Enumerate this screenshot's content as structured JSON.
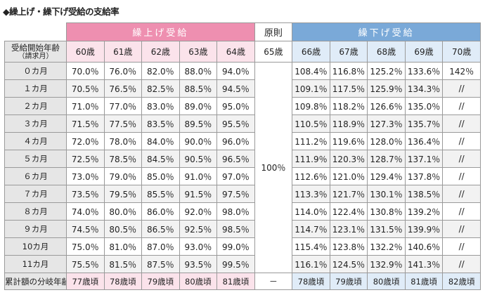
{
  "title": "◆繰上げ・繰下げ受給の支給率",
  "headers": {
    "early": "繰上げ受給",
    "base": "原則",
    "late": "繰下げ受給",
    "row_head_main": "受給開始年齢",
    "row_head_sub": "（請求月）"
  },
  "ages": [
    "60歳",
    "61歳",
    "62歳",
    "63歳",
    "64歳",
    "65歳",
    "66歳",
    "67歳",
    "68歳",
    "69歳",
    "70歳"
  ],
  "base_rate": "100％",
  "months": [
    "０カ月",
    "１カ月",
    "２カ月",
    "３カ月",
    "４カ月",
    "５カ月",
    "６カ月",
    "７カ月",
    "８カ月",
    "９カ月",
    "10カ月",
    "11カ月"
  ],
  "early_rates": [
    [
      "70.0％",
      "76.0％",
      "82.0％",
      "88.0％",
      "94.0％"
    ],
    [
      "70.5％",
      "76.5％",
      "82.5％",
      "88.5％",
      "94.5％"
    ],
    [
      "71.0％",
      "77.0％",
      "83.0％",
      "89.0％",
      "95.0％"
    ],
    [
      "71.5％",
      "77.5％",
      "83.5％",
      "89.5％",
      "95.5％"
    ],
    [
      "72.0％",
      "78.0％",
      "84.0％",
      "90.0％",
      "96.0％"
    ],
    [
      "72.5％",
      "78.5％",
      "84.5％",
      "90.5％",
      "96.5％"
    ],
    [
      "73.0％",
      "79.0％",
      "85.0％",
      "91.0％",
      "97.0％"
    ],
    [
      "73.5％",
      "79.5％",
      "85.5％",
      "91.5％",
      "97.5％"
    ],
    [
      "74.0％",
      "80.0％",
      "86.0％",
      "92.0％",
      "98.0％"
    ],
    [
      "74.5％",
      "80.5％",
      "86.5％",
      "92.5％",
      "98.5％"
    ],
    [
      "75.0％",
      "81.0％",
      "87.0％",
      "93.0％",
      "99.0％"
    ],
    [
      "75.5％",
      "81.5％",
      "87.5％",
      "93.5％",
      "99.5％"
    ]
  ],
  "late_rates": [
    [
      "108.4％",
      "116.8％",
      "125.2％",
      "133.6％",
      "142％"
    ],
    [
      "109.1％",
      "117.5％",
      "125.9％",
      "134.3％",
      "//"
    ],
    [
      "109.8％",
      "118.2％",
      "126.6％",
      "135.0％",
      "//"
    ],
    [
      "110.5％",
      "118.9％",
      "127.3％",
      "135.7％",
      "//"
    ],
    [
      "111.2％",
      "119.6％",
      "128.0％",
      "136.4％",
      "//"
    ],
    [
      "111.9％",
      "120.3％",
      "128.7％",
      "137.1％",
      "//"
    ],
    [
      "112.6％",
      "121.0％",
      "129.4％",
      "137.8％",
      "//"
    ],
    [
      "113.3％",
      "121.7％",
      "130.1％",
      "138.5％",
      "//"
    ],
    [
      "114.0％",
      "122.4％",
      "130.8％",
      "139.2％",
      "//"
    ],
    [
      "114.7％",
      "123.1％",
      "131.5％",
      "139.9％",
      "//"
    ],
    [
      "115.4％",
      "123.8％",
      "132.2％",
      "140.6％",
      "//"
    ],
    [
      "116.1％",
      "124.5％",
      "132.9％",
      "141.3％",
      "//"
    ]
  ],
  "footer": {
    "label": "累計額の分岐年齢",
    "values": [
      "77歳頃",
      "78歳頃",
      "79歳頃",
      "80歳頃",
      "81歳頃",
      "－",
      "78歳頃",
      "79歳頃",
      "80歳頃",
      "81歳頃",
      "82歳頃"
    ]
  }
}
